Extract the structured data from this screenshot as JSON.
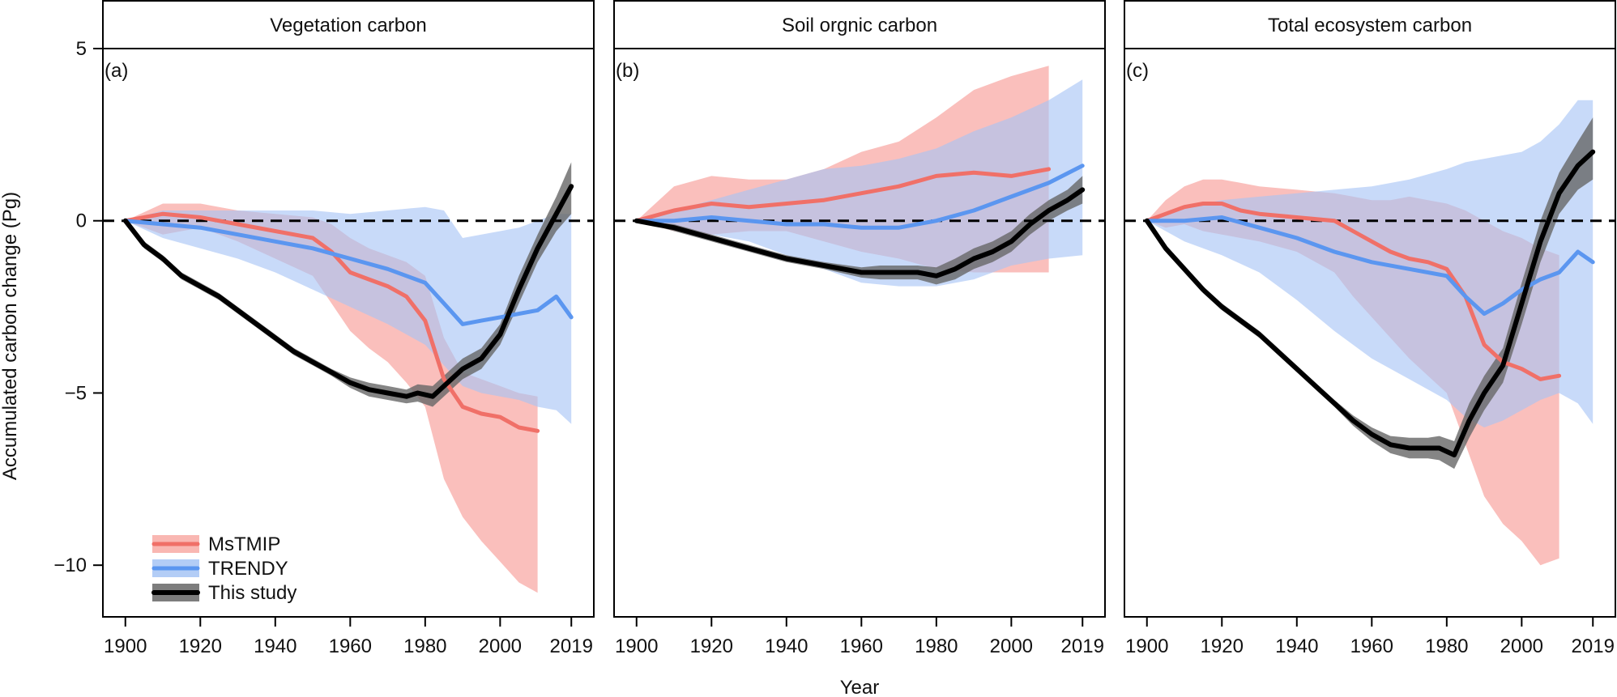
{
  "figure": {
    "ylabel": "Accumulated carbon change (Pg)",
    "xlabel": "Year"
  },
  "colors": {
    "MsTMIP": "#f07068",
    "MsTMIP_band": "#f8aaa5",
    "TRENDY": "#5b96f0",
    "TRENDY_band": "#a6c4f5",
    "This study": "#000000",
    "This study_band": "#666666",
    "overlap": "#a89fd0"
  },
  "legend": {
    "items": [
      "MsTMIP",
      "TRENDY",
      "This study"
    ],
    "placement": "bottom-left of panel (a)"
  },
  "chart_data": [
    {
      "type": "line",
      "panel_tag": "(a)",
      "title": "Vegetation carbon",
      "xlabel": "Year",
      "ylabel": "Accumulated carbon change (Pg)",
      "xlim": [
        1894,
        2025
      ],
      "ylim": [
        -11.5,
        5.0
      ],
      "xticks": [
        1900,
        1920,
        1940,
        1960,
        1980,
        2000,
        2019
      ],
      "yticks": [
        5,
        0,
        -5,
        -10
      ],
      "yticklabels": [
        "5",
        "0",
        "−5",
        "−10"
      ],
      "reference_line": 0,
      "series": [
        {
          "name": "MsTMIP",
          "x": [
            1900,
            1910,
            1920,
            1930,
            1940,
            1950,
            1955,
            1960,
            1965,
            1970,
            1975,
            1980,
            1985,
            1990,
            1995,
            2000,
            2005,
            2010
          ],
          "y": [
            0,
            0.2,
            0.1,
            -0.1,
            -0.3,
            -0.5,
            -0.9,
            -1.5,
            -1.7,
            -1.9,
            -2.2,
            -2.9,
            -4.6,
            -5.4,
            -5.6,
            -5.7,
            -6.0,
            -6.1
          ],
          "lower": [
            0,
            -0.4,
            -0.2,
            -0.6,
            -1.1,
            -1.6,
            -2.4,
            -3.2,
            -3.7,
            -4.1,
            -4.7,
            -5.4,
            -7.5,
            -8.6,
            -9.3,
            -9.9,
            -10.5,
            -10.8
          ],
          "upper": [
            0,
            0.5,
            0.5,
            0.3,
            0.2,
            0.1,
            -0.1,
            -0.5,
            -0.8,
            -1.0,
            -1.2,
            -1.6,
            -3.4,
            -4.4,
            -4.6,
            -4.8,
            -5.0,
            -5.1
          ]
        },
        {
          "name": "TRENDY",
          "x": [
            1900,
            1910,
            1920,
            1930,
            1940,
            1950,
            1960,
            1970,
            1980,
            1985,
            1990,
            1995,
            2000,
            2005,
            2010,
            2015,
            2019
          ],
          "y": [
            0,
            -0.1,
            -0.2,
            -0.4,
            -0.6,
            -0.8,
            -1.1,
            -1.4,
            -1.8,
            -2.4,
            -3.0,
            -2.9,
            -2.8,
            -2.7,
            -2.6,
            -2.2,
            -2.8
          ],
          "lower": [
            0,
            -0.5,
            -0.8,
            -1.1,
            -1.5,
            -2.0,
            -2.5,
            -3.0,
            -3.6,
            -4.2,
            -4.8,
            -5.0,
            -5.1,
            -5.2,
            -5.4,
            -5.5,
            -5.9
          ],
          "upper": [
            0,
            0.3,
            0.3,
            0.3,
            0.3,
            0.3,
            0.2,
            0.3,
            0.4,
            0.3,
            -0.5,
            -0.4,
            -0.3,
            -0.2,
            0.0,
            0.2,
            0.2
          ]
        },
        {
          "name": "This study",
          "x": [
            1900,
            1905,
            1910,
            1915,
            1920,
            1925,
            1930,
            1935,
            1940,
            1945,
            1950,
            1955,
            1960,
            1965,
            1970,
            1975,
            1978,
            1982,
            1986,
            1990,
            1995,
            2000,
            2005,
            2010,
            2015,
            2019
          ],
          "y": [
            0,
            -0.7,
            -1.1,
            -1.6,
            -1.9,
            -2.2,
            -2.6,
            -3.0,
            -3.4,
            -3.8,
            -4.1,
            -4.4,
            -4.7,
            -4.9,
            -5.0,
            -5.1,
            -5.0,
            -5.1,
            -4.7,
            -4.3,
            -4.0,
            -3.3,
            -2.0,
            -0.8,
            0.2,
            1.0
          ],
          "lower": [
            0,
            -0.8,
            -1.2,
            -1.7,
            -2.0,
            -2.3,
            -2.7,
            -3.1,
            -3.5,
            -3.9,
            -4.2,
            -4.5,
            -4.85,
            -5.1,
            -5.2,
            -5.3,
            -5.25,
            -5.4,
            -5.0,
            -4.6,
            -4.3,
            -3.6,
            -2.4,
            -1.2,
            -0.3,
            0.2
          ],
          "upper": [
            0,
            -0.6,
            -1.0,
            -1.5,
            -1.8,
            -2.1,
            -2.5,
            -2.9,
            -3.3,
            -3.7,
            -4.0,
            -4.3,
            -4.55,
            -4.7,
            -4.8,
            -4.9,
            -4.75,
            -4.8,
            -4.4,
            -4.0,
            -3.7,
            -3.0,
            -1.6,
            -0.4,
            0.7,
            1.7
          ]
        }
      ]
    },
    {
      "type": "line",
      "panel_tag": "(b)",
      "title": "Soil orgnic carbon",
      "xlabel": "Year",
      "ylabel": "Accumulated carbon change (Pg)",
      "xlim": [
        1894,
        2025
      ],
      "ylim": [
        -11.5,
        5.0
      ],
      "xticks": [
        1900,
        1920,
        1940,
        1960,
        1980,
        2000,
        2019
      ],
      "yticks": [
        5,
        0,
        -5,
        -10
      ],
      "reference_line": 0,
      "series": [
        {
          "name": "MsTMIP",
          "x": [
            1900,
            1910,
            1920,
            1930,
            1940,
            1950,
            1960,
            1970,
            1980,
            1990,
            2000,
            2010
          ],
          "y": [
            0,
            0.3,
            0.5,
            0.4,
            0.5,
            0.6,
            0.8,
            1.0,
            1.3,
            1.4,
            1.3,
            1.5
          ],
          "lower": [
            0,
            -0.3,
            -0.4,
            -0.3,
            -0.3,
            -0.6,
            -0.9,
            -1.1,
            -1.4,
            -1.5,
            -1.5,
            -1.5
          ],
          "upper": [
            0,
            1.0,
            1.3,
            1.2,
            1.2,
            1.5,
            2.0,
            2.3,
            3.0,
            3.8,
            4.2,
            4.5
          ]
        },
        {
          "name": "TRENDY",
          "x": [
            1900,
            1910,
            1920,
            1930,
            1940,
            1950,
            1960,
            1970,
            1980,
            1990,
            2000,
            2010,
            2019
          ],
          "y": [
            0,
            0.0,
            0.1,
            0.0,
            -0.1,
            -0.1,
            -0.2,
            -0.2,
            0.0,
            0.3,
            0.7,
            1.1,
            1.6
          ],
          "lower": [
            0,
            -0.2,
            -0.4,
            -0.6,
            -1.0,
            -1.4,
            -1.8,
            -1.9,
            -1.9,
            -1.7,
            -1.3,
            -1.1,
            -1.0
          ],
          "upper": [
            0,
            0.3,
            0.6,
            0.9,
            1.2,
            1.5,
            1.6,
            1.8,
            2.1,
            2.6,
            3.0,
            3.5,
            4.1
          ]
        },
        {
          "name": "This study",
          "x": [
            1900,
            1905,
            1910,
            1920,
            1930,
            1940,
            1950,
            1960,
            1965,
            1970,
            1975,
            1980,
            1985,
            1990,
            1995,
            2000,
            2005,
            2010,
            2015,
            2019
          ],
          "y": [
            0,
            -0.1,
            -0.2,
            -0.5,
            -0.8,
            -1.1,
            -1.3,
            -1.5,
            -1.5,
            -1.5,
            -1.5,
            -1.6,
            -1.4,
            -1.1,
            -0.9,
            -0.6,
            -0.1,
            0.3,
            0.6,
            0.9
          ],
          "lower": [
            0,
            -0.15,
            -0.3,
            -0.6,
            -0.9,
            -1.2,
            -1.4,
            -1.65,
            -1.7,
            -1.7,
            -1.7,
            -1.85,
            -1.7,
            -1.4,
            -1.2,
            -0.9,
            -0.4,
            0.0,
            0.3,
            0.5
          ],
          "upper": [
            0,
            -0.05,
            -0.1,
            -0.4,
            -0.7,
            -1.0,
            -1.2,
            -1.35,
            -1.3,
            -1.3,
            -1.3,
            -1.35,
            -1.1,
            -0.8,
            -0.6,
            -0.3,
            0.2,
            0.6,
            0.9,
            1.3
          ]
        }
      ]
    },
    {
      "type": "line",
      "panel_tag": "(c)",
      "title": "Total ecosystem carbon",
      "xlabel": "Year",
      "ylabel": "Accumulated carbon change (Pg)",
      "xlim": [
        1894,
        2025
      ],
      "ylim": [
        -11.5,
        5.0
      ],
      "xticks": [
        1900,
        1920,
        1940,
        1960,
        1980,
        2000,
        2019
      ],
      "yticks": [
        5,
        0,
        -5,
        -10
      ],
      "reference_line": 0,
      "series": [
        {
          "name": "MsTMIP",
          "x": [
            1900,
            1905,
            1910,
            1915,
            1920,
            1925,
            1930,
            1940,
            1950,
            1955,
            1960,
            1965,
            1970,
            1975,
            1980,
            1985,
            1990,
            1995,
            2000,
            2005,
            2010
          ],
          "y": [
            0,
            0.2,
            0.4,
            0.5,
            0.5,
            0.3,
            0.2,
            0.1,
            0.0,
            -0.3,
            -0.6,
            -0.9,
            -1.1,
            -1.2,
            -1.4,
            -2.2,
            -3.6,
            -4.1,
            -4.3,
            -4.6,
            -4.5
          ],
          "lower": [
            0,
            -0.2,
            -0.1,
            -0.3,
            -0.4,
            -0.5,
            -0.6,
            -0.9,
            -1.5,
            -2.2,
            -2.8,
            -3.4,
            -4.0,
            -4.5,
            -5.0,
            -6.5,
            -8.0,
            -8.8,
            -9.3,
            -10.0,
            -9.8
          ],
          "upper": [
            0,
            0.6,
            1.0,
            1.2,
            1.2,
            1.1,
            1.0,
            0.9,
            0.8,
            0.7,
            0.6,
            0.6,
            0.7,
            0.6,
            0.5,
            0.3,
            0.0,
            -0.3,
            -0.5,
            -0.8,
            -1.0
          ]
        },
        {
          "name": "TRENDY",
          "x": [
            1900,
            1910,
            1920,
            1930,
            1940,
            1950,
            1960,
            1970,
            1980,
            1985,
            1990,
            1995,
            2000,
            2005,
            2010,
            2015,
            2019
          ],
          "y": [
            0,
            0.0,
            0.1,
            -0.2,
            -0.5,
            -0.9,
            -1.2,
            -1.4,
            -1.6,
            -2.2,
            -2.7,
            -2.4,
            -2.0,
            -1.7,
            -1.5,
            -0.9,
            -1.2
          ],
          "lower": [
            0,
            -0.6,
            -1.0,
            -1.5,
            -2.3,
            -3.2,
            -4.0,
            -4.6,
            -5.2,
            -5.7,
            -6.0,
            -5.8,
            -5.5,
            -5.2,
            -5.0,
            -5.3,
            -5.9
          ],
          "upper": [
            0,
            0.4,
            0.6,
            0.7,
            0.8,
            0.9,
            1.0,
            1.2,
            1.5,
            1.7,
            1.8,
            1.9,
            2.0,
            2.3,
            2.8,
            3.5,
            3.5
          ]
        },
        {
          "name": "This study",
          "x": [
            1900,
            1905,
            1910,
            1915,
            1920,
            1925,
            1930,
            1935,
            1940,
            1945,
            1950,
            1955,
            1960,
            1965,
            1970,
            1975,
            1978,
            1982,
            1986,
            1990,
            1995,
            2000,
            2005,
            2010,
            2015,
            2019
          ],
          "y": [
            0,
            -0.8,
            -1.4,
            -2.0,
            -2.5,
            -2.9,
            -3.3,
            -3.8,
            -4.3,
            -4.8,
            -5.3,
            -5.8,
            -6.2,
            -6.5,
            -6.6,
            -6.6,
            -6.6,
            -6.8,
            -5.8,
            -5.0,
            -4.2,
            -2.4,
            -0.6,
            0.8,
            1.6,
            2.0
          ],
          "lower": [
            0,
            -0.9,
            -1.5,
            -2.1,
            -2.6,
            -3.0,
            -3.4,
            -3.9,
            -4.4,
            -4.9,
            -5.4,
            -5.95,
            -6.4,
            -6.75,
            -6.9,
            -6.9,
            -6.95,
            -7.2,
            -6.3,
            -5.5,
            -4.7,
            -3.0,
            -1.2,
            0.2,
            0.9,
            1.2
          ],
          "upper": [
            0,
            -0.7,
            -1.3,
            -1.9,
            -2.4,
            -2.8,
            -3.2,
            -3.7,
            -4.2,
            -4.7,
            -5.2,
            -5.65,
            -6.0,
            -6.25,
            -6.3,
            -6.3,
            -6.25,
            -6.4,
            -5.3,
            -4.5,
            -3.7,
            -1.8,
            0.0,
            1.4,
            2.3,
            3.0
          ]
        }
      ]
    }
  ]
}
